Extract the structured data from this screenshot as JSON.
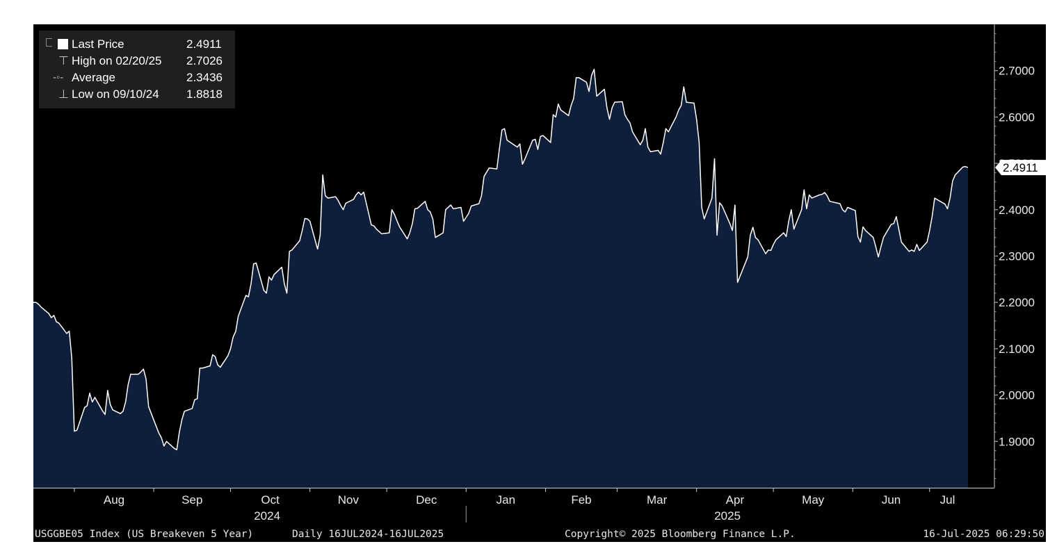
{
  "chart_data": {
    "type": "area",
    "ticker": "USGGBE05 Index (US Breakeven 5 Year)",
    "frequency_range": "Daily 16JUL2024-16JUL2025",
    "copyright": "Copyright© 2025 Bloomberg Finance L.P.",
    "timestamp": "16-Jul-2025 06:29:50",
    "ylim": [
      1.8,
      2.8
    ],
    "yticks": [
      1.9,
      2.0,
      2.1,
      2.2,
      2.3,
      2.4,
      2.5,
      2.6,
      2.7
    ],
    "ytick_labels": [
      "1.9000",
      "2.0000",
      "2.1000",
      "2.2000",
      "2.3000",
      "2.4000",
      "2.5000",
      "2.6000",
      "2.7000"
    ],
    "months": [
      "Aug",
      "Sep",
      "Oct",
      "Nov",
      "Dec",
      "Jan",
      "Feb",
      "Mar",
      "Apr",
      "May",
      "Jun",
      "Jul"
    ],
    "years": [
      "2024",
      "2025"
    ],
    "last_price_tag": "2.4911",
    "legend": [
      {
        "label": "Last Price",
        "value": "2.4911",
        "marker": "box"
      },
      {
        "label": "High on 02/20/25",
        "value": "2.7026",
        "marker": "high"
      },
      {
        "label": "Average",
        "value": "2.3436",
        "marker": "average"
      },
      {
        "label": "Low on 09/10/24",
        "value": "1.8818",
        "marker": "low"
      }
    ],
    "colors": {
      "line": "#ffffff",
      "area": "#0f1e3a",
      "background": "#000000",
      "text": "#e8e8e8"
    },
    "series": [
      {
        "name": "Last Price",
        "points": [
          [
            "2024-07-16",
            2.2
          ],
          [
            "2024-07-17",
            2.2
          ],
          [
            "2024-07-18",
            2.196
          ],
          [
            "2024-07-19",
            2.19
          ],
          [
            "2024-07-22",
            2.176
          ],
          [
            "2024-07-23",
            2.167
          ],
          [
            "2024-07-24",
            2.172
          ],
          [
            "2024-07-25",
            2.158
          ],
          [
            "2024-07-26",
            2.155
          ],
          [
            "2024-07-29",
            2.133
          ],
          [
            "2024-07-30",
            2.138
          ],
          [
            "2024-07-31",
            2.08
          ],
          [
            "2024-08-01",
            1.922
          ],
          [
            "2024-08-02",
            1.924
          ],
          [
            "2024-08-05",
            1.973
          ],
          [
            "2024-08-06",
            1.977
          ],
          [
            "2024-08-07",
            2.004
          ],
          [
            "2024-08-08",
            1.985
          ],
          [
            "2024-08-09",
            1.995
          ],
          [
            "2024-08-12",
            1.966
          ],
          [
            "2024-08-13",
            1.958
          ],
          [
            "2024-08-14",
            2.01
          ],
          [
            "2024-08-15",
            1.98
          ],
          [
            "2024-08-16",
            1.968
          ],
          [
            "2024-08-19",
            1.96
          ],
          [
            "2024-08-20",
            1.965
          ],
          [
            "2024-08-21",
            1.985
          ],
          [
            "2024-08-22",
            2.022
          ],
          [
            "2024-08-23",
            2.045
          ],
          [
            "2024-08-26",
            2.045
          ],
          [
            "2024-08-27",
            2.05
          ],
          [
            "2024-08-28",
            2.056
          ],
          [
            "2024-08-29",
            2.035
          ],
          [
            "2024-08-30",
            1.975
          ],
          [
            "2024-09-03",
            1.918
          ],
          [
            "2024-09-04",
            1.908
          ],
          [
            "2024-09-05",
            1.89
          ],
          [
            "2024-09-06",
            1.9
          ],
          [
            "2024-09-09",
            1.885
          ],
          [
            "2024-09-10",
            1.882
          ],
          [
            "2024-09-11",
            1.92
          ],
          [
            "2024-09-12",
            1.947
          ],
          [
            "2024-09-13",
            1.965
          ],
          [
            "2024-09-16",
            1.971
          ],
          [
            "2024-09-17",
            1.99
          ],
          [
            "2024-09-18",
            1.992
          ],
          [
            "2024-09-19",
            2.058
          ],
          [
            "2024-09-20",
            2.058
          ],
          [
            "2024-09-23",
            2.063
          ],
          [
            "2024-09-24",
            2.087
          ],
          [
            "2024-09-25",
            2.083
          ],
          [
            "2024-09-26",
            2.065
          ],
          [
            "2024-09-27",
            2.06
          ],
          [
            "2024-09-30",
            2.085
          ],
          [
            "2024-10-01",
            2.1
          ],
          [
            "2024-10-02",
            2.125
          ],
          [
            "2024-10-03",
            2.137
          ],
          [
            "2024-10-04",
            2.17
          ],
          [
            "2024-10-07",
            2.215
          ],
          [
            "2024-10-08",
            2.212
          ],
          [
            "2024-10-09",
            2.24
          ],
          [
            "2024-10-10",
            2.283
          ],
          [
            "2024-10-11",
            2.285
          ],
          [
            "2024-10-14",
            2.226
          ],
          [
            "2024-10-15",
            2.22
          ],
          [
            "2024-10-16",
            2.255
          ],
          [
            "2024-10-17",
            2.248
          ],
          [
            "2024-10-18",
            2.26
          ],
          [
            "2024-10-21",
            2.276
          ],
          [
            "2024-10-22",
            2.24
          ],
          [
            "2024-10-23",
            2.22
          ],
          [
            "2024-10-24",
            2.31
          ],
          [
            "2024-10-25",
            2.313
          ],
          [
            "2024-10-28",
            2.333
          ],
          [
            "2024-10-29",
            2.355
          ],
          [
            "2024-10-30",
            2.381
          ],
          [
            "2024-10-31",
            2.38
          ],
          [
            "2024-11-01",
            2.375
          ],
          [
            "2024-11-04",
            2.315
          ],
          [
            "2024-11-05",
            2.345
          ],
          [
            "2024-11-06",
            2.475
          ],
          [
            "2024-11-07",
            2.43
          ],
          [
            "2024-11-08",
            2.425
          ],
          [
            "2024-11-11",
            2.428
          ],
          [
            "2024-11-12",
            2.42
          ],
          [
            "2024-11-13",
            2.409
          ],
          [
            "2024-11-14",
            2.4
          ],
          [
            "2024-11-15",
            2.414
          ],
          [
            "2024-11-18",
            2.422
          ],
          [
            "2024-11-19",
            2.432
          ],
          [
            "2024-11-20",
            2.438
          ],
          [
            "2024-11-21",
            2.432
          ],
          [
            "2024-11-22",
            2.438
          ],
          [
            "2024-11-25",
            2.367
          ],
          [
            "2024-11-26",
            2.365
          ],
          [
            "2024-11-27",
            2.358
          ],
          [
            "2024-11-29",
            2.348
          ],
          [
            "2024-12-02",
            2.35
          ],
          [
            "2024-12-03",
            2.4
          ],
          [
            "2024-12-04",
            2.39
          ],
          [
            "2024-12-05",
            2.376
          ],
          [
            "2024-12-06",
            2.363
          ],
          [
            "2024-12-09",
            2.337
          ],
          [
            "2024-12-10",
            2.35
          ],
          [
            "2024-12-11",
            2.37
          ],
          [
            "2024-12-12",
            2.402
          ],
          [
            "2024-12-13",
            2.403
          ],
          [
            "2024-12-16",
            2.418
          ],
          [
            "2024-12-17",
            2.4
          ],
          [
            "2024-12-18",
            2.395
          ],
          [
            "2024-12-19",
            2.38
          ],
          [
            "2024-12-20",
            2.34
          ],
          [
            "2024-12-23",
            2.35
          ],
          [
            "2024-12-24",
            2.4
          ],
          [
            "2024-12-26",
            2.41
          ],
          [
            "2024-12-27",
            2.402
          ],
          [
            "2024-12-30",
            2.405
          ],
          [
            "2024-12-31",
            2.375
          ],
          [
            "2025-01-02",
            2.392
          ],
          [
            "2025-01-03",
            2.408
          ],
          [
            "2025-01-06",
            2.413
          ],
          [
            "2025-01-07",
            2.43
          ],
          [
            "2025-01-08",
            2.472
          ],
          [
            "2025-01-10",
            2.49
          ],
          [
            "2025-01-13",
            2.488
          ],
          [
            "2025-01-14",
            2.532
          ],
          [
            "2025-01-15",
            2.572
          ],
          [
            "2025-01-16",
            2.575
          ],
          [
            "2025-01-17",
            2.55
          ],
          [
            "2025-01-21",
            2.535
          ],
          [
            "2025-01-22",
            2.542
          ],
          [
            "2025-01-23",
            2.498
          ],
          [
            "2025-01-24",
            2.51
          ],
          [
            "2025-01-27",
            2.55
          ],
          [
            "2025-01-28",
            2.552
          ],
          [
            "2025-01-29",
            2.53
          ],
          [
            "2025-01-30",
            2.558
          ],
          [
            "2025-01-31",
            2.56
          ],
          [
            "2025-02-03",
            2.545
          ],
          [
            "2025-02-04",
            2.605
          ],
          [
            "2025-02-05",
            2.6
          ],
          [
            "2025-02-06",
            2.628
          ],
          [
            "2025-02-07",
            2.615
          ],
          [
            "2025-02-10",
            2.603
          ],
          [
            "2025-02-11",
            2.625
          ],
          [
            "2025-02-12",
            2.64
          ],
          [
            "2025-02-13",
            2.685
          ],
          [
            "2025-02-14",
            2.685
          ],
          [
            "2025-02-17",
            2.675
          ],
          [
            "2025-02-18",
            2.655
          ],
          [
            "2025-02-19",
            2.69
          ],
          [
            "2025-02-20",
            2.703
          ],
          [
            "2025-02-21",
            2.645
          ],
          [
            "2025-02-24",
            2.66
          ],
          [
            "2025-02-25",
            2.62
          ],
          [
            "2025-02-26",
            2.595
          ],
          [
            "2025-02-27",
            2.62
          ],
          [
            "2025-02-28",
            2.632
          ],
          [
            "2025-03-03",
            2.633
          ],
          [
            "2025-03-04",
            2.605
          ],
          [
            "2025-03-05",
            2.595
          ],
          [
            "2025-03-06",
            2.587
          ],
          [
            "2025-03-07",
            2.568
          ],
          [
            "2025-03-10",
            2.54
          ],
          [
            "2025-03-11",
            2.55
          ],
          [
            "2025-03-12",
            2.575
          ],
          [
            "2025-03-13",
            2.535
          ],
          [
            "2025-03-14",
            2.525
          ],
          [
            "2025-03-17",
            2.528
          ],
          [
            "2025-03-18",
            2.52
          ],
          [
            "2025-03-19",
            2.545
          ],
          [
            "2025-03-20",
            2.575
          ],
          [
            "2025-03-21",
            2.568
          ],
          [
            "2025-03-24",
            2.6
          ],
          [
            "2025-03-25",
            2.615
          ],
          [
            "2025-03-26",
            2.625
          ],
          [
            "2025-03-27",
            2.665
          ],
          [
            "2025-03-28",
            2.632
          ],
          [
            "2025-03-31",
            2.63
          ],
          [
            "2025-04-01",
            2.595
          ],
          [
            "2025-04-02",
            2.545
          ],
          [
            "2025-04-03",
            2.405
          ],
          [
            "2025-04-04",
            2.38
          ],
          [
            "2025-04-07",
            2.425
          ],
          [
            "2025-04-08",
            2.51
          ],
          [
            "2025-04-09",
            2.345
          ],
          [
            "2025-04-10",
            2.415
          ],
          [
            "2025-04-11",
            2.408
          ],
          [
            "2025-04-14",
            2.37
          ],
          [
            "2025-04-15",
            2.355
          ],
          [
            "2025-04-16",
            2.41
          ],
          [
            "2025-04-17",
            2.243
          ],
          [
            "2025-04-21",
            2.298
          ],
          [
            "2025-04-22",
            2.345
          ],
          [
            "2025-04-23",
            2.362
          ],
          [
            "2025-04-24",
            2.34
          ],
          [
            "2025-04-25",
            2.335
          ],
          [
            "2025-04-28",
            2.305
          ],
          [
            "2025-04-29",
            2.313
          ],
          [
            "2025-04-30",
            2.312
          ],
          [
            "2025-05-01",
            2.325
          ],
          [
            "2025-05-02",
            2.335
          ],
          [
            "2025-05-05",
            2.35
          ],
          [
            "2025-05-06",
            2.342
          ],
          [
            "2025-05-07",
            2.375
          ],
          [
            "2025-05-08",
            2.4
          ],
          [
            "2025-05-09",
            2.358
          ],
          [
            "2025-05-12",
            2.4
          ],
          [
            "2025-05-13",
            2.443
          ],
          [
            "2025-05-14",
            2.402
          ],
          [
            "2025-05-15",
            2.432
          ],
          [
            "2025-05-16",
            2.425
          ],
          [
            "2025-05-19",
            2.432
          ],
          [
            "2025-05-20",
            2.433
          ],
          [
            "2025-05-21",
            2.437
          ],
          [
            "2025-05-22",
            2.43
          ],
          [
            "2025-05-23",
            2.418
          ],
          [
            "2025-05-27",
            2.413
          ],
          [
            "2025-05-28",
            2.4
          ],
          [
            "2025-05-29",
            2.395
          ],
          [
            "2025-05-30",
            2.405
          ],
          [
            "2025-06-02",
            2.398
          ],
          [
            "2025-06-03",
            2.342
          ],
          [
            "2025-06-04",
            2.33
          ],
          [
            "2025-06-05",
            2.363
          ],
          [
            "2025-06-06",
            2.355
          ],
          [
            "2025-06-09",
            2.34
          ],
          [
            "2025-06-10",
            2.32
          ],
          [
            "2025-06-11",
            2.298
          ],
          [
            "2025-06-12",
            2.32
          ],
          [
            "2025-06-13",
            2.34
          ],
          [
            "2025-06-16",
            2.368
          ],
          [
            "2025-06-17",
            2.37
          ],
          [
            "2025-06-18",
            2.385
          ],
          [
            "2025-06-20",
            2.33
          ],
          [
            "2025-06-23",
            2.31
          ],
          [
            "2025-06-24",
            2.313
          ],
          [
            "2025-06-25",
            2.31
          ],
          [
            "2025-06-26",
            2.325
          ],
          [
            "2025-06-27",
            2.312
          ],
          [
            "2025-06-30",
            2.33
          ],
          [
            "2025-07-01",
            2.355
          ],
          [
            "2025-07-02",
            2.385
          ],
          [
            "2025-07-03",
            2.425
          ],
          [
            "2025-07-07",
            2.412
          ],
          [
            "2025-07-08",
            2.402
          ],
          [
            "2025-07-09",
            2.425
          ],
          [
            "2025-07-10",
            2.462
          ],
          [
            "2025-07-11",
            2.475
          ],
          [
            "2025-07-14",
            2.492
          ],
          [
            "2025-07-15",
            2.493
          ],
          [
            "2025-07-16",
            2.491
          ]
        ]
      }
    ]
  }
}
